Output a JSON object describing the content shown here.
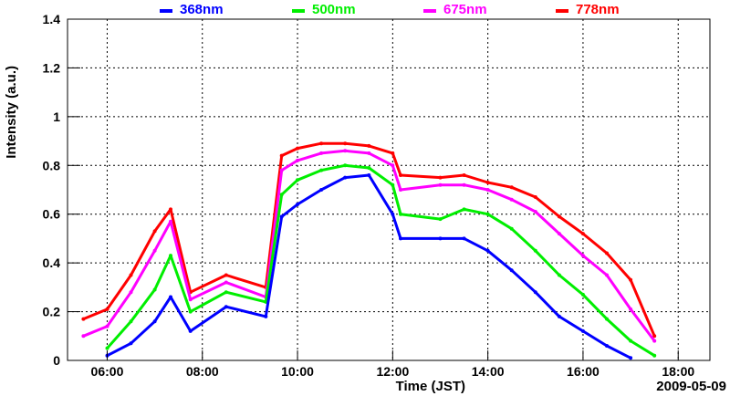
{
  "chart_data": {
    "type": "line",
    "xlabel": "Time (JST)",
    "ylabel": "Intensity (a.u.)",
    "date_label": "2009-05-09",
    "xlim": [
      "05:10",
      "18:40"
    ],
    "ylim": [
      0,
      1.4
    ],
    "x_ticks": [
      "06:00",
      "08:00",
      "10:00",
      "12:00",
      "14:00",
      "16:00",
      "18:00"
    ],
    "y_ticks": [
      "0",
      "0.2",
      "0.4",
      "0.6",
      "0.8",
      "1",
      "1.2",
      "1.4"
    ],
    "grid": true,
    "legend_position": "top",
    "x": [
      "05:30",
      "06:00",
      "06:30",
      "07:00",
      "07:20",
      "07:45",
      "08:30",
      "09:20",
      "09:40",
      "10:00",
      "10:30",
      "11:00",
      "11:30",
      "12:00",
      "12:10",
      "13:00",
      "13:30",
      "14:00",
      "14:30",
      "15:00",
      "15:30",
      "16:00",
      "16:30",
      "17:00",
      "17:30"
    ],
    "series": [
      {
        "name": "368nm",
        "color": "#0000ff",
        "values": [
          null,
          0.02,
          0.07,
          0.16,
          0.26,
          0.12,
          0.22,
          0.18,
          0.59,
          0.64,
          0.7,
          0.75,
          0.76,
          0.6,
          0.5,
          0.5,
          0.5,
          0.45,
          0.37,
          0.28,
          0.18,
          0.12,
          0.06,
          0.01,
          null
        ]
      },
      {
        "name": "500nm",
        "color": "#00ee00",
        "values": [
          null,
          0.05,
          0.16,
          0.29,
          0.43,
          0.2,
          0.28,
          0.24,
          0.68,
          0.74,
          0.78,
          0.8,
          0.79,
          0.72,
          0.6,
          0.58,
          0.62,
          0.6,
          0.54,
          0.45,
          0.35,
          0.27,
          0.17,
          0.08,
          0.02
        ]
      },
      {
        "name": "675nm",
        "color": "#ff00ff",
        "values": [
          0.1,
          0.14,
          0.28,
          0.45,
          0.57,
          0.25,
          0.32,
          0.26,
          0.78,
          0.82,
          0.85,
          0.86,
          0.85,
          0.8,
          0.7,
          0.72,
          0.72,
          0.7,
          0.66,
          0.61,
          0.52,
          0.43,
          0.35,
          0.21,
          0.08
        ]
      },
      {
        "name": "778nm",
        "color": "#ff0000",
        "values": [
          0.17,
          0.21,
          0.35,
          0.53,
          0.62,
          0.28,
          0.35,
          0.3,
          0.84,
          0.87,
          0.89,
          0.89,
          0.88,
          0.85,
          0.76,
          0.75,
          0.76,
          0.73,
          0.71,
          0.67,
          0.59,
          0.52,
          0.44,
          0.33,
          0.1
        ]
      }
    ]
  }
}
